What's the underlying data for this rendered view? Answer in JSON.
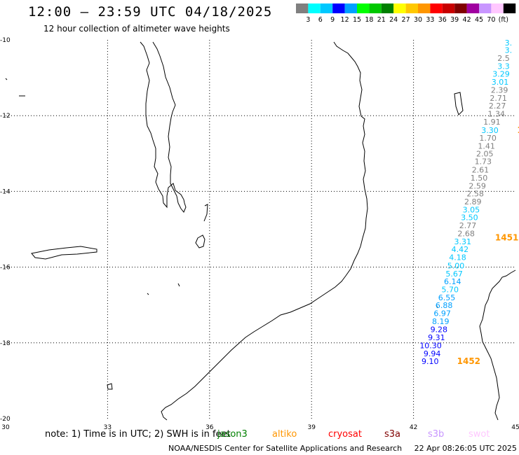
{
  "header": {
    "title": "12:00 – 23:59 UTC 04/18/2025",
    "subtitle": "12 hour collection of altimeter wave heights"
  },
  "legend": {
    "colors": [
      "#808080",
      "#00ffff",
      "#00c8ff",
      "#0000ff",
      "#00a0ff",
      "#00ff00",
      "#00c800",
      "#008000",
      "#ffff00",
      "#ffc800",
      "#ff9600",
      "#ff0000",
      "#c80000",
      "#800000",
      "#a000a0",
      "#c896ff",
      "#ffc8ff",
      "#000000"
    ],
    "labels": [
      "3",
      "6",
      "9",
      "12",
      "15",
      "18",
      "21",
      "24",
      "27",
      "30",
      "33",
      "36",
      "39",
      "42",
      "45",
      "70",
      "(ft)"
    ]
  },
  "map": {
    "lon_ticks": [
      "30",
      "33",
      "36",
      "39",
      "42",
      "45"
    ],
    "lat_ticks": [
      "-10",
      "-12",
      "-14",
      "-16",
      "-18",
      "-20"
    ]
  },
  "wave_labels": [
    {
      "lat": -10.07,
      "lon": 44.9,
      "text": "3.",
      "color": "#00c8ff"
    },
    {
      "lat": -10.27,
      "lon": 44.9,
      "text": "3.",
      "color": "#00c8ff"
    },
    {
      "lat": -10.48,
      "lon": 44.83,
      "text": "2.5",
      "color": "#808080"
    },
    {
      "lat": -10.69,
      "lon": 44.83,
      "text": "3.3",
      "color": "#00c8ff"
    },
    {
      "lat": -10.9,
      "lon": 44.83,
      "text": "3.29",
      "color": "#00c8ff"
    },
    {
      "lat": -11.11,
      "lon": 44.8,
      "text": "3.01",
      "color": "#00c8ff"
    },
    {
      "lat": -11.32,
      "lon": 44.78,
      "text": "2.39",
      "color": "#808080"
    },
    {
      "lat": -11.53,
      "lon": 44.75,
      "text": "2.71",
      "color": "#808080"
    },
    {
      "lat": -11.74,
      "lon": 44.72,
      "text": "2.27",
      "color": "#808080"
    },
    {
      "lat": -11.95,
      "lon": 44.69,
      "text": "1.34",
      "color": "#808080"
    },
    {
      "lat": -12.16,
      "lon": 44.56,
      "text": "1.91",
      "color": "#808080"
    },
    {
      "lat": -12.38,
      "lon": 44.5,
      "text": "3.30",
      "color": "#00c8ff"
    },
    {
      "lat": -12.59,
      "lon": 44.44,
      "text": "1.70",
      "color": "#808080"
    },
    {
      "lat": -12.8,
      "lon": 44.4,
      "text": "1.41",
      "color": "#808080"
    },
    {
      "lat": -13.0,
      "lon": 44.35,
      "text": "2.05",
      "color": "#808080"
    },
    {
      "lat": -13.21,
      "lon": 44.3,
      "text": "1.73",
      "color": "#808080"
    },
    {
      "lat": -13.43,
      "lon": 44.22,
      "text": "2.61",
      "color": "#808080"
    },
    {
      "lat": -13.64,
      "lon": 44.18,
      "text": "1.50",
      "color": "#808080"
    },
    {
      "lat": -13.85,
      "lon": 44.13,
      "text": "2.59",
      "color": "#808080"
    },
    {
      "lat": -14.06,
      "lon": 44.07,
      "text": "2.58",
      "color": "#808080"
    },
    {
      "lat": -14.27,
      "lon": 44.0,
      "text": "2.89",
      "color": "#808080"
    },
    {
      "lat": -14.48,
      "lon": 43.95,
      "text": "3.05",
      "color": "#00c8ff"
    },
    {
      "lat": -14.69,
      "lon": 43.9,
      "text": "3.50",
      "color": "#00c8ff"
    },
    {
      "lat": -14.9,
      "lon": 43.85,
      "text": "2.77",
      "color": "#808080"
    },
    {
      "lat": -15.11,
      "lon": 43.8,
      "text": "2.68",
      "color": "#808080"
    },
    {
      "lat": -15.32,
      "lon": 43.7,
      "text": "3.31",
      "color": "#00c8ff"
    },
    {
      "lat": -15.53,
      "lon": 43.62,
      "text": "4.42",
      "color": "#00c8ff"
    },
    {
      "lat": -15.74,
      "lon": 43.55,
      "text": "4.18",
      "color": "#00c8ff"
    },
    {
      "lat": -15.96,
      "lon": 43.5,
      "text": "5.00",
      "color": "#00c8ff"
    },
    {
      "lat": -16.17,
      "lon": 43.45,
      "text": "5.67",
      "color": "#00c8ff"
    },
    {
      "lat": -16.38,
      "lon": 43.4,
      "text": "6.14",
      "color": "#00a0ff"
    },
    {
      "lat": -16.59,
      "lon": 43.33,
      "text": "5.70",
      "color": "#00c8ff"
    },
    {
      "lat": -16.8,
      "lon": 43.23,
      "text": "6.55",
      "color": "#00a0ff"
    },
    {
      "lat": -17.01,
      "lon": 43.15,
      "text": "6.88",
      "color": "#00a0ff"
    },
    {
      "lat": -17.22,
      "lon": 43.1,
      "text": "6.97",
      "color": "#00a0ff"
    },
    {
      "lat": -17.43,
      "lon": 43.05,
      "text": "8.19",
      "color": "#00a0ff"
    },
    {
      "lat": -17.64,
      "lon": 43.0,
      "text": "9.28",
      "color": "#0000ff"
    },
    {
      "lat": -17.86,
      "lon": 42.93,
      "text": "9.31",
      "color": "#0000ff"
    },
    {
      "lat": -18.07,
      "lon": 42.83,
      "text": "10.30",
      "color": "#0000ff"
    },
    {
      "lat": -18.28,
      "lon": 42.8,
      "text": "9.94",
      "color": "#0000ff"
    },
    {
      "lat": -18.48,
      "lon": 42.74,
      "text": "9.10",
      "color": "#0000ff"
    }
  ],
  "time_labels": [
    {
      "lat": -15.22,
      "lon": 44.4,
      "text": "1451",
      "color": "#ff9600"
    },
    {
      "lat": -18.48,
      "lon": 43.28,
      "text": "1452",
      "color": "#ff9600"
    },
    {
      "lat": -12.38,
      "lon": 45.05,
      "text": "1",
      "color": "#ff9600"
    }
  ],
  "footer": {
    "note": "note: 1) Time is in UTC; 2) SWH is in feet",
    "satellites": [
      {
        "name": "jason3",
        "color": "#008000"
      },
      {
        "name": "altiko",
        "color": "#ff9600"
      },
      {
        "name": "cryosat",
        "color": "#ff0000"
      },
      {
        "name": "s3a",
        "color": "#800000"
      },
      {
        "name": "s3b",
        "color": "#c896ff"
      },
      {
        "name": "swot",
        "color": "#ffc8ff"
      }
    ],
    "credit": "NOAA/NESDIS Center for Satellite Applications and Research",
    "timestamp": "22 Apr 08:26:05 UTC 2025"
  }
}
